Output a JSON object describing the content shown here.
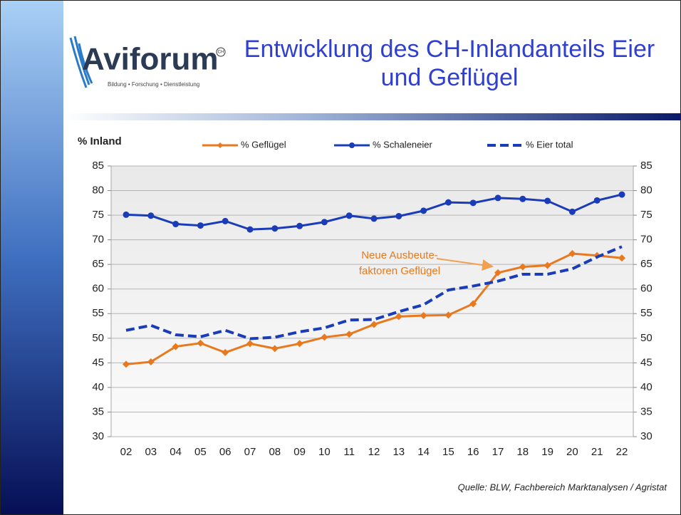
{
  "logo": {
    "name": "Aviforum",
    "badge": "CH",
    "tagline": "Bildung • Forschung • Dienstleistung"
  },
  "chart_data": {
    "type": "line",
    "title": "Entwicklung des CH-Inlandanteils Eier und Geflügel",
    "y_label": "% Inland",
    "categories": [
      "02",
      "03",
      "04",
      "05",
      "06",
      "07",
      "08",
      "09",
      "10",
      "11",
      "12",
      "13",
      "14",
      "15",
      "16",
      "17",
      "18",
      "19",
      "20",
      "21",
      "22"
    ],
    "series": [
      {
        "name": "% Geflügel",
        "color": "#e8791e",
        "marker": "diamond",
        "dash": false,
        "values": [
          44.7,
          45.2,
          48.3,
          49.0,
          47.1,
          48.9,
          47.9,
          48.9,
          50.2,
          50.8,
          52.8,
          54.4,
          54.6,
          54.7,
          57.0,
          63.3,
          64.5,
          64.8,
          67.2,
          66.8,
          66.3
        ]
      },
      {
        "name": "% Schaleneier",
        "color": "#1a3cb8",
        "marker": "circle",
        "dash": false,
        "values": [
          75.1,
          74.9,
          73.2,
          72.9,
          73.8,
          72.1,
          72.3,
          72.8,
          73.6,
          74.9,
          74.3,
          74.8,
          75.9,
          77.6,
          77.5,
          78.5,
          78.3,
          77.9,
          75.7,
          78.0,
          79.2
        ]
      },
      {
        "name": "% Eier total",
        "color": "#1a3cb8",
        "marker": "none",
        "dash": true,
        "values": [
          51.6,
          52.6,
          50.7,
          50.3,
          51.6,
          49.9,
          50.2,
          51.3,
          52.1,
          53.7,
          53.8,
          55.4,
          56.8,
          59.8,
          60.6,
          61.6,
          63.0,
          63.0,
          64.1,
          66.5,
          68.6
        ]
      }
    ],
    "ylim": [
      30,
      85
    ],
    "yticks": [
      30,
      35,
      40,
      45,
      50,
      55,
      60,
      65,
      70,
      75,
      80,
      85
    ],
    "y2lim": [
      30,
      85
    ],
    "y2ticks": [
      30,
      35,
      40,
      45,
      50,
      55,
      60,
      65,
      70,
      75,
      80,
      85
    ],
    "grid": true,
    "annotation": [
      "Neue Ausbeute-",
      "faktoren Geflügel"
    ]
  },
  "source": "Quelle: BLW, Fachbereich Marktanalysen / Agristat"
}
